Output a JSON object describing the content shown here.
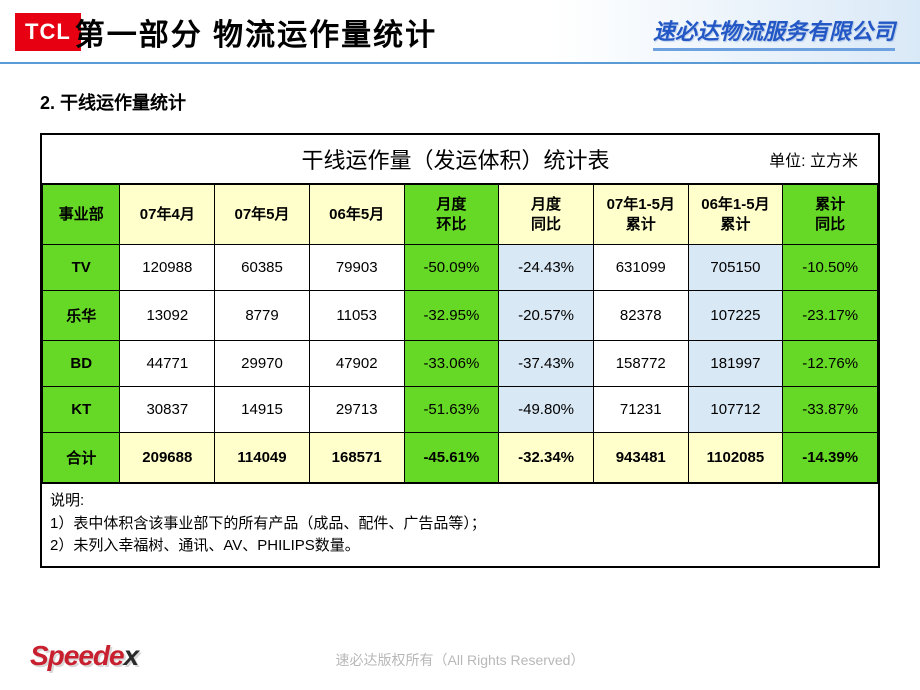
{
  "header": {
    "logo_text": "TCL",
    "title": "第一部分 物流运作量统计",
    "company": "速必达物流服务有限公司"
  },
  "subtitle": "2. 干线运作量统计",
  "table": {
    "title": "干线运作量（发运体积）统计表",
    "unit": "单位: 立方米",
    "columns": [
      {
        "label": "事业部",
        "bg": "bg-green"
      },
      {
        "label": "07年4月",
        "bg": "bg-yellow"
      },
      {
        "label": "07年5月",
        "bg": "bg-yellow"
      },
      {
        "label": "06年5月",
        "bg": "bg-yellow"
      },
      {
        "label": "月度\n环比",
        "bg": "bg-green"
      },
      {
        "label": "月度\n同比",
        "bg": "bg-yellow"
      },
      {
        "label": "07年1-5月\n累计",
        "bg": "bg-yellow"
      },
      {
        "label": "06年1-5月\n累计",
        "bg": "bg-yellow"
      },
      {
        "label": "累计\n同比",
        "bg": "bg-green"
      }
    ],
    "rows": [
      {
        "cells": [
          "TV",
          "120988",
          "60385",
          "79903",
          "-50.09%",
          "-24.43%",
          "631099",
          "705150",
          "-10.50%"
        ],
        "total": false
      },
      {
        "cells": [
          "乐华",
          "13092",
          "8779",
          "11053",
          "-32.95%",
          "-20.57%",
          "82378",
          "107225",
          "-23.17%"
        ],
        "total": false
      },
      {
        "cells": [
          "BD",
          "44771",
          "29970",
          "47902",
          "-33.06%",
          "-37.43%",
          "158772",
          "181997",
          "-12.76%"
        ],
        "total": false
      },
      {
        "cells": [
          "KT",
          "30837",
          "14915",
          "29713",
          "-51.63%",
          "-49.80%",
          "71231",
          "107712",
          "-33.87%"
        ],
        "total": false
      },
      {
        "cells": [
          "合计",
          "209688",
          "114049",
          "168571",
          "-45.61%",
          "-32.34%",
          "943481",
          "1102085",
          "-14.39%"
        ],
        "total": true
      }
    ],
    "cell_bg": [
      "bg-green",
      "",
      "",
      "",
      "bg-green",
      "bg-blue",
      "",
      "bg-blue",
      "bg-green"
    ],
    "total_bg": [
      "bg-green",
      "bg-yellow",
      "bg-yellow",
      "bg-yellow",
      "bg-green",
      "bg-yellow",
      "bg-yellow",
      "bg-yellow",
      "bg-green"
    ],
    "notes_title": "说明:",
    "notes": [
      "1）表中体积含该事业部下的所有产品（成品、配件、广告品等）；",
      "2）未列入幸福树、通讯、AV、PHILIPS数量。"
    ]
  },
  "footer": {
    "logo_main": "Speede",
    "logo_x": "x",
    "copyright": "速必达版权所有（All Rights Reserved）"
  },
  "colors": {
    "green": "#66d926",
    "yellow": "#ffffcc",
    "blue": "#d9e8f5",
    "logo_red": "#e60012",
    "header_blue": "#2257c5"
  }
}
